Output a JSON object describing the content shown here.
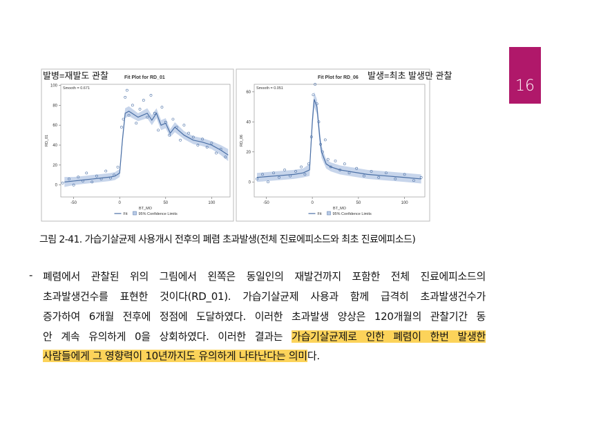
{
  "page_number": "16",
  "figure": {
    "panels": [
      {
        "type": "scatter",
        "overlay_label": "발병=재발도 관찰",
        "title": "Fit Plot for RD_01",
        "smooth": "Smooth = 0.671",
        "x_label": "BT_MO",
        "y_label": "RD_01",
        "xlim": [
          -64,
          120
        ],
        "xticks": [
          -50,
          0,
          50,
          100
        ],
        "ylim": [
          -12,
          101
        ],
        "yticks": [
          0,
          20,
          40,
          60,
          80,
          100
        ],
        "legend": [
          "Fit",
          "95% Confidence Limits"
        ],
        "color": "#4a6fa5",
        "band_color": "#b9cbe6",
        "fit_x": [
          -60,
          -50,
          -40,
          -30,
          -20,
          -10,
          -5,
          0,
          3,
          6,
          10,
          20,
          30,
          35,
          40,
          45,
          50,
          55,
          60,
          70,
          80,
          90,
          100,
          110,
          118
        ],
        "fit_y": [
          3,
          4,
          5,
          6,
          7,
          8,
          9,
          12,
          45,
          72,
          74,
          68,
          72,
          65,
          72,
          60,
          62,
          52,
          58,
          50,
          45,
          43,
          40,
          35,
          30
        ],
        "band_lower": [
          -2,
          0,
          1,
          2,
          3,
          4,
          5,
          8,
          40,
          67,
          69,
          64,
          67,
          60,
          67,
          55,
          57,
          48,
          53,
          46,
          41,
          39,
          36,
          30,
          24
        ],
        "band_upper": [
          8,
          8,
          9,
          10,
          11,
          12,
          13,
          16,
          50,
          77,
          79,
          72,
          77,
          70,
          77,
          65,
          67,
          56,
          63,
          54,
          49,
          47,
          44,
          40,
          36
        ],
        "points_x": [
          -62,
          -55,
          -50,
          -45,
          -40,
          -36,
          -30,
          -25,
          -20,
          -15,
          -10,
          -6,
          -2,
          2,
          4,
          6,
          8,
          10,
          14,
          18,
          22,
          26,
          30,
          34,
          38,
          42,
          46,
          50,
          54,
          58,
          62,
          66,
          70,
          75,
          80,
          85,
          90,
          95,
          100,
          105,
          110,
          115
        ],
        "points_y": [
          2,
          6,
          0,
          8,
          4,
          12,
          3,
          9,
          6,
          14,
          7,
          10,
          18,
          58,
          66,
          88,
          95,
          70,
          80,
          62,
          76,
          85,
          68,
          90,
          72,
          55,
          78,
          63,
          50,
          66,
          58,
          45,
          60,
          52,
          48,
          40,
          46,
          38,
          42,
          32,
          36,
          28
        ]
      },
      {
        "type": "scatter",
        "overlay_label": "발생=최초 발생만 관찰",
        "title": "Fit Plot for RD_06",
        "smooth": "Smooth = 0.051",
        "x_label": "BT_MO",
        "y_label": "RD_06",
        "xlim": [
          -63,
          122
        ],
        "xticks": [
          -50,
          0,
          50,
          100
        ],
        "ylim": [
          -10,
          65
        ],
        "yticks": [
          0,
          20,
          40,
          60
        ],
        "legend": [
          "Fit",
          "95% Confidence Limits"
        ],
        "color": "#4a6fa5",
        "band_color": "#b9cbe6",
        "fit_x": [
          -60,
          -40,
          -20,
          -10,
          -3,
          0,
          2,
          5,
          8,
          10,
          15,
          20,
          30,
          40,
          60,
          80,
          100,
          118
        ],
        "fit_y": [
          3,
          4,
          5,
          6,
          8,
          40,
          55,
          50,
          30,
          20,
          12,
          10,
          8,
          7,
          5,
          4,
          3,
          2
        ],
        "band_lower": [
          0,
          1,
          2,
          3,
          4,
          35,
          50,
          45,
          25,
          16,
          9,
          7,
          5,
          4,
          2,
          1,
          0,
          -1
        ],
        "band_upper": [
          6,
          7,
          8,
          9,
          12,
          45,
          60,
          55,
          35,
          24,
          15,
          13,
          11,
          10,
          8,
          7,
          6,
          5
        ],
        "points_x": [
          -60,
          -54,
          -48,
          -42,
          -36,
          -30,
          -24,
          -18,
          -12,
          -8,
          -4,
          -1,
          1,
          3,
          5,
          7,
          9,
          11,
          14,
          17,
          20,
          25,
          30,
          35,
          40,
          48,
          56,
          64,
          72,
          80,
          90,
          100,
          110,
          118
        ],
        "points_y": [
          2,
          5,
          0,
          6,
          3,
          8,
          4,
          7,
          10,
          5,
          12,
          30,
          58,
          65,
          52,
          40,
          25,
          20,
          28,
          15,
          10,
          14,
          8,
          12,
          6,
          9,
          4,
          7,
          3,
          6,
          2,
          5,
          1,
          3
        ]
      }
    ]
  },
  "caption": "그림 2-41. 가습기살균제 사용개시 전후의 폐렴 초과발생(전체 진료에피소드와 최초 진료에피소드)",
  "paragraph": {
    "bullet": "-",
    "lines": [
      "폐렴에서 관찰된 위의 그림에서 왼쪽은 동일인의 재발건까지 포함한 전체 진료에피소드의",
      "초과발생건수를 표현한 것이다(RD_01). 가습기살균제 사용과 함께 급격히 초과발생건수가",
      "증가하여 6개월 전후에 정점에 도달하였다. 이러한 초과발생 양상은 120개월의 관찰기간 동",
      "안 계속 유의하게 0을 상회하였다. 이러한 결과는 ",
      "사람들에게 그 영향력이 10년까지도 유의하게 나타난다는 의미"
    ],
    "highlight_1": "가습기살균제로 인한 폐렴이 한번 발생한",
    "tail": "다."
  }
}
